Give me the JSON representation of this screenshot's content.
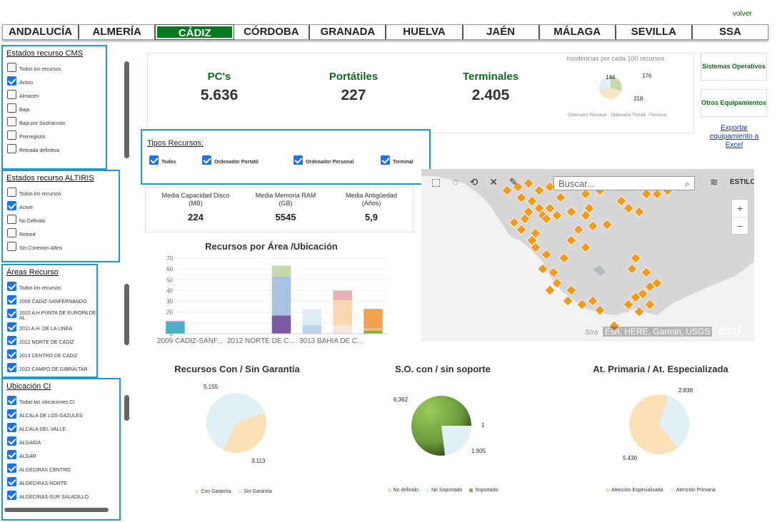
{
  "header": {
    "volver": "volver"
  },
  "tabs": [
    "ANDALUCÍA",
    "ALMERÍA",
    "CÁDIZ",
    "CÓRDOBA",
    "GRANADA",
    "HUELVA",
    "JAÉN",
    "MÁLAGA",
    "SEVILLA",
    "SSA"
  ],
  "active_tab": "CÁDIZ",
  "estados_cms": {
    "title": "Estados recurso CMS",
    "items": [
      {
        "label": "Todos los recursos",
        "checked": false
      },
      {
        "label": "Activo",
        "checked": true
      },
      {
        "label": "Almacen",
        "checked": false
      },
      {
        "label": "Baja",
        "checked": false
      },
      {
        "label": "Baja por Sustraccion",
        "checked": false
      },
      {
        "label": "Prerregistro",
        "checked": false
      },
      {
        "label": "Retirada definitiva",
        "checked": false
      }
    ]
  },
  "estados_altiris": {
    "title": "Estados recurso ALTIRIS",
    "items": [
      {
        "label": "Todos los recursos",
        "checked": false
      },
      {
        "label": "Active",
        "checked": true
      },
      {
        "label": "No Definido",
        "checked": false
      },
      {
        "label": "Retired",
        "checked": false
      },
      {
        "label": "Sin Conexion Altiris",
        "checked": false
      }
    ]
  },
  "areas": {
    "title": "Áreas Recurso",
    "items": [
      {
        "label": "Todos los recursos",
        "checked": true
      },
      {
        "label": "2009 CADIZ-SANFERNANDO",
        "checked": true
      },
      {
        "label": "2010 A.H PUNTA DE EUROPA DE AL",
        "checked": true
      },
      {
        "label": "2011 A.H. DE LA LINEA",
        "checked": true
      },
      {
        "label": "2012 NORTE DE CADIZ",
        "checked": true
      },
      {
        "label": "2013 CENTRO DE CADIZ",
        "checked": true
      },
      {
        "label": "2022 CAMPO DE GIBRALTAR",
        "checked": true
      }
    ]
  },
  "ubicacion": {
    "title": "Ubicación CI",
    "items": [
      {
        "label": "Todas las ubicaciones CI",
        "checked": true
      },
      {
        "label": "ALCALA DE LOS GAZULES",
        "checked": true
      },
      {
        "label": "ALCALA DEL VALLE",
        "checked": true
      },
      {
        "label": "ALGAIDA",
        "checked": true
      },
      {
        "label": "ALGAR",
        "checked": true
      },
      {
        "label": "ALGECIRAS CENTRO",
        "checked": true
      },
      {
        "label": "ALGECIRAS-NORTE",
        "checked": true
      },
      {
        "label": "ALGECIRAS-SUR SALADILLO",
        "checked": true
      }
    ]
  },
  "kpis": [
    {
      "title": "PC's",
      "value": "5.636"
    },
    {
      "title": "Portátiles",
      "value": "227"
    },
    {
      "title": "Terminales",
      "value": "2.405"
    }
  ],
  "incidencias": {
    "title": "Incidencias por cada 100 recursos",
    "labels": {
      "a": "144",
      "b": "176",
      "c": "318"
    },
    "legend": [
      "Ordenador Personal",
      "Ordenador Portatil",
      "Terminal"
    ]
  },
  "side_buttons": {
    "sistemas": "Sistemas Operativos",
    "otros": "Otros Equipamientos",
    "exportar": "Exportar equipamiento a Excel"
  },
  "tipos": {
    "title": "Tipos Recursos:",
    "items": [
      {
        "label": "Todos",
        "checked": true
      },
      {
        "label": "Ordenador Portatil",
        "checked": true
      },
      {
        "label": "Ordenador Personal",
        "checked": true
      },
      {
        "label": "Terminal",
        "checked": true
      }
    ]
  },
  "stats": [
    {
      "label1": "Media Capacidad Disco",
      "label2": "(MB)",
      "value": "224"
    },
    {
      "label1": "Media Memoria RAM",
      "label2": "(GB)",
      "value": "5545"
    },
    {
      "label1": "Media Antigüedad",
      "label2": "(Años)",
      "value": "5,9"
    }
  ],
  "map": {
    "search_placeholder": "Buscar...",
    "estilo": "ESTILO",
    "attribution": "Esri, HERE, Garmin, USGS",
    "logo": "esri",
    "zoom_in": "+",
    "zoom_out": "−",
    "partial_label": "Stra"
  },
  "chart_data": [
    {
      "type": "bar",
      "title": "Recursos por Área /Ubicación",
      "categories": [
        "2009 CADIZ-SANF...",
        "",
        "2012 NORTE DE C...",
        "",
        "3013 BAHIA DE C...",
        "",
        ""
      ],
      "ylim": [
        0,
        70
      ],
      "yticks": [
        0,
        10,
        20,
        30,
        40,
        50,
        60,
        70
      ],
      "stacks": [
        {
          "segments": [
            {
              "value": 11,
              "color": "#4ab0c8"
            },
            {
              "value": 1,
              "color": "#c9a2c0"
            }
          ]
        },
        {
          "segments": []
        },
        {
          "segments": []
        },
        {
          "segments": [
            {
              "value": 17,
              "color": "#7b5aa3"
            },
            {
              "value": 36,
              "color": "#a9c4e2"
            },
            {
              "value": 10,
              "color": "#c6d9a8"
            }
          ]
        },
        {
          "segments": [
            {
              "value": 8,
              "color": "#bcd4ea"
            },
            {
              "value": 15,
              "color": "#e0ecf6"
            }
          ]
        },
        {
          "segments": [
            {
              "value": 8,
              "color": "#f2e7d8"
            },
            {
              "value": 23,
              "color": "#f9d7b0"
            },
            {
              "value": 9,
              "color": "#e6b3b3"
            }
          ]
        },
        {
          "segments": [
            {
              "value": 3,
              "color": "#7ab648"
            },
            {
              "value": 2,
              "color": "#f4c07f"
            },
            {
              "value": 18,
              "color": "#f5a04a"
            }
          ]
        }
      ]
    },
    {
      "type": "pie",
      "title": "Recursos Con / Sin Garantía",
      "slices": [
        {
          "label": "Con Garantía",
          "value": 3113,
          "display": "3.113",
          "color": "#fce0b8"
        },
        {
          "label": "Sin Garantía",
          "value": 5155,
          "display": "5.155",
          "color": "#dff0f6"
        }
      ]
    },
    {
      "type": "pie",
      "title": "S.O. con / sin soporte",
      "slices": [
        {
          "label": "No definido",
          "value": 1,
          "display": "1",
          "color": "#f9d7b0"
        },
        {
          "label": "No Soportado",
          "value": 1905,
          "display": "1.905",
          "color": "#dff0f6"
        },
        {
          "label": "Soportado",
          "value": 6362,
          "display": "6.362",
          "color": "#7ab648"
        }
      ]
    },
    {
      "type": "pie",
      "title": "At. Primaria / At. Especializada",
      "slices": [
        {
          "label": "Atención Especializada",
          "value": 5430,
          "display": "5.430",
          "color": "#fce0b8"
        },
        {
          "label": "Atención Primaria",
          "value": 2838,
          "display": "2.838",
          "color": "#dff0f6"
        }
      ]
    }
  ]
}
